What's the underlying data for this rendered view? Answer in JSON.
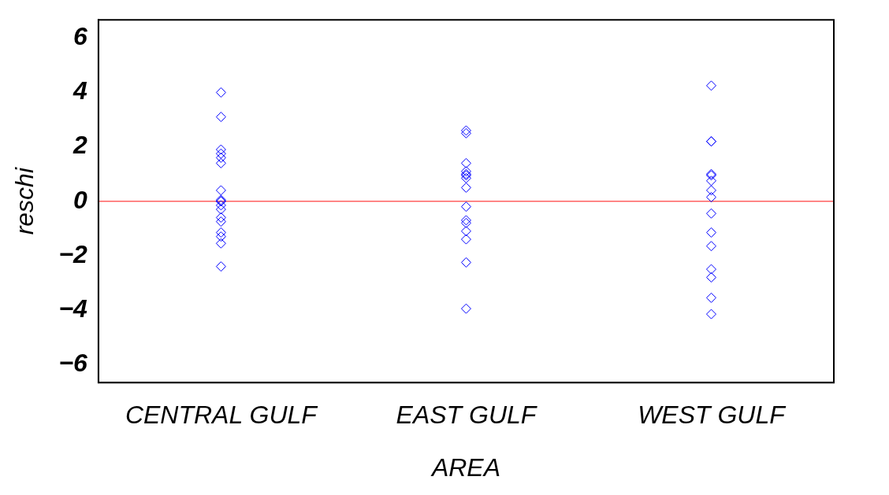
{
  "chart_data": {
    "type": "scatter",
    "xlabel": "AREA",
    "ylabel": "reschi",
    "categories": [
      "CENTRAL GULF",
      "EAST GULF",
      "WEST GULF"
    ],
    "ylim": [
      -6.67,
      6.67
    ],
    "yticks": [
      {
        "value": -6,
        "label": "−6"
      },
      {
        "value": -4,
        "label": "−4"
      },
      {
        "value": -2,
        "label": "−2"
      },
      0,
      2,
      4,
      6
    ],
    "grid": false,
    "legend": false,
    "marker": "diamond",
    "ref_lines": [
      {
        "axis": "y",
        "value": 0,
        "color": "#ff6060",
        "line_style": "solid"
      }
    ],
    "series": [
      {
        "color": "#0000ff",
        "x": [
          "CENTRAL GULF",
          "CENTRAL GULF",
          "CENTRAL GULF",
          "CENTRAL GULF",
          "CENTRAL GULF",
          "CENTRAL GULF",
          "CENTRAL GULF",
          "CENTRAL GULF",
          "CENTRAL GULF",
          "CENTRAL GULF",
          "CENTRAL GULF",
          "CENTRAL GULF",
          "CENTRAL GULF",
          "CENTRAL GULF",
          "CENTRAL GULF",
          "CENTRAL GULF",
          "CENTRAL GULF",
          "CENTRAL GULF",
          "EAST GULF",
          "EAST GULF",
          "EAST GULF",
          "EAST GULF",
          "EAST GULF",
          "EAST GULF",
          "EAST GULF",
          "EAST GULF",
          "EAST GULF",
          "EAST GULF",
          "EAST GULF",
          "EAST GULF",
          "EAST GULF",
          "EAST GULF",
          "EAST GULF",
          "WEST GULF",
          "WEST GULF",
          "WEST GULF",
          "WEST GULF",
          "WEST GULF",
          "WEST GULF",
          "WEST GULF",
          "WEST GULF",
          "WEST GULF",
          "WEST GULF",
          "WEST GULF",
          "WEST GULF",
          "WEST GULF",
          "WEST GULF",
          "WEST GULF"
        ],
        "values": [
          4.0,
          3.1,
          1.9,
          1.75,
          1.6,
          1.4,
          0.4,
          0.05,
          0.0,
          -0.15,
          -0.3,
          -0.6,
          -0.75,
          -1.15,
          -1.3,
          -1.55,
          -2.4,
          0.0,
          2.6,
          2.5,
          1.4,
          1.1,
          1.0,
          0.95,
          0.85,
          0.5,
          -0.2,
          -0.7,
          -0.8,
          -1.1,
          -1.4,
          -2.25,
          -3.95,
          4.25,
          2.2,
          2.2,
          1.0,
          0.95,
          0.75,
          0.4,
          0.15,
          -0.45,
          -1.15,
          -1.65,
          -2.5,
          -2.8,
          -3.55,
          -4.15
        ]
      }
    ]
  }
}
